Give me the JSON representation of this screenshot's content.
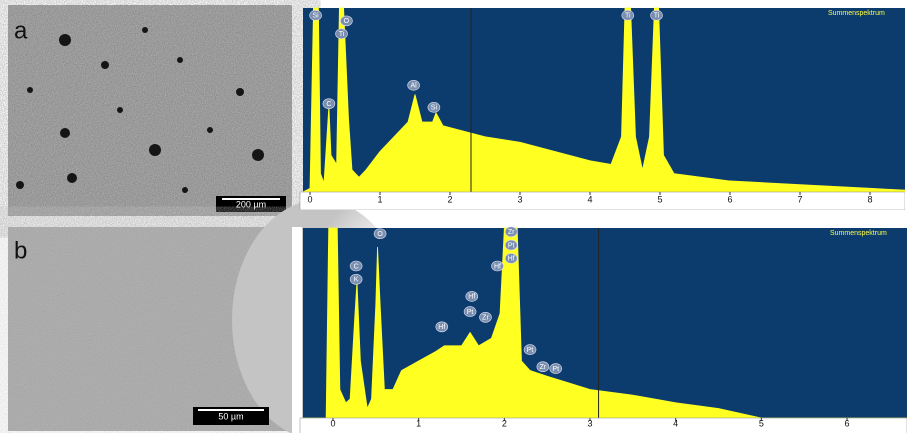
{
  "panels": [
    {
      "label": "a",
      "scale_bar": "200 µm"
    },
    {
      "label": "b",
      "scale_bar": "50 µm"
    }
  ],
  "chart_data": [
    {
      "type": "area",
      "legend_text": "Summenspektrum",
      "color": "#ffff22",
      "background": "#0c3c6e",
      "x": [
        -0.1,
        0,
        0.05,
        0.12,
        0.15,
        0.2,
        0.27,
        0.3,
        0.38,
        0.42,
        0.48,
        0.55,
        0.6,
        0.7,
        0.8,
        1.0,
        1.2,
        1.4,
        1.5,
        1.6,
        1.75,
        1.8,
        1.9,
        2.2,
        2.5,
        3,
        3.5,
        4,
        4.3,
        4.45,
        4.5,
        4.58,
        4.65,
        4.75,
        4.85,
        4.92,
        4.98,
        5.05,
        5.2,
        6,
        7,
        8,
        8.5
      ],
      "values": [
        0,
        2,
        100,
        100,
        10,
        5,
        47,
        20,
        15,
        100,
        100,
        40,
        12,
        8,
        12,
        22,
        30,
        38,
        53,
        38,
        38,
        43,
        36,
        33,
        30,
        27,
        22,
        17,
        15,
        30,
        100,
        100,
        30,
        12,
        30,
        100,
        100,
        20,
        10,
        6,
        4,
        2,
        1
      ],
      "xlim": [
        -0.1,
        8.5
      ],
      "ylim": [
        0,
        100
      ],
      "xticks": [
        0,
        1,
        2,
        3,
        4,
        5,
        6,
        7,
        8
      ],
      "cursor": 2.3,
      "annotations": [
        {
          "text": "Si",
          "x": 0.08,
          "y": 96
        },
        {
          "text": "O",
          "x": 0.52,
          "y": 93
        },
        {
          "text": "Ti",
          "x": 0.45,
          "y": 86
        },
        {
          "text": "C",
          "x": 0.27,
          "y": 48
        },
        {
          "text": "Al",
          "x": 1.48,
          "y": 58
        },
        {
          "text": "Si",
          "x": 1.77,
          "y": 46
        },
        {
          "text": "Ti",
          "x": 4.54,
          "y": 96
        },
        {
          "text": "Ti",
          "x": 4.95,
          "y": 96
        }
      ]
    },
    {
      "type": "area",
      "legend_text": "Summenspektrum",
      "color": "#ffff22",
      "background": "#0c3c6e",
      "x": [
        -0.35,
        -0.08,
        -0.05,
        0.05,
        0.08,
        0.15,
        0.2,
        0.25,
        0.28,
        0.32,
        0.4,
        0.45,
        0.5,
        0.52,
        0.55,
        0.6,
        0.7,
        0.8,
        1.0,
        1.2,
        1.3,
        1.5,
        1.6,
        1.7,
        1.85,
        1.95,
        2.0,
        2.15,
        2.2,
        2.3,
        2.5,
        3,
        3.5,
        4,
        4.5,
        5,
        6.7
      ],
      "values": [
        0,
        0,
        100,
        100,
        15,
        8,
        10,
        50,
        72,
        30,
        5,
        10,
        60,
        90,
        60,
        15,
        15,
        25,
        30,
        35,
        38,
        38,
        45,
        38,
        42,
        55,
        100,
        100,
        30,
        25,
        22,
        15,
        12,
        8,
        5,
        0,
        0
      ],
      "xlim": [
        -0.35,
        6.7
      ],
      "ylim": [
        0,
        100
      ],
      "xticks": [
        0,
        1,
        2,
        3,
        4,
        5,
        6
      ],
      "cursor": 3.1,
      "annotations": [
        {
          "text": "O",
          "x": 0.55,
          "y": 97
        },
        {
          "text": "C",
          "x": 0.27,
          "y": 80
        },
        {
          "text": "K",
          "x": 0.27,
          "y": 73
        },
        {
          "text": "Hf",
          "x": 1.27,
          "y": 48
        },
        {
          "text": "Hf",
          "x": 1.62,
          "y": 64
        },
        {
          "text": "Pt",
          "x": 1.6,
          "y": 56
        },
        {
          "text": "Zr",
          "x": 1.78,
          "y": 53
        },
        {
          "text": "Hf",
          "x": 1.92,
          "y": 80
        },
        {
          "text": "Zr",
          "x": 2.08,
          "y": 98
        },
        {
          "text": "Pt",
          "x": 2.08,
          "y": 91
        },
        {
          "text": "Hf",
          "x": 2.08,
          "y": 84
        },
        {
          "text": "Pt",
          "x": 2.3,
          "y": 36
        },
        {
          "text": "Zr",
          "x": 2.45,
          "y": 27
        },
        {
          "text": "Pt",
          "x": 2.6,
          "y": 26
        }
      ]
    }
  ]
}
